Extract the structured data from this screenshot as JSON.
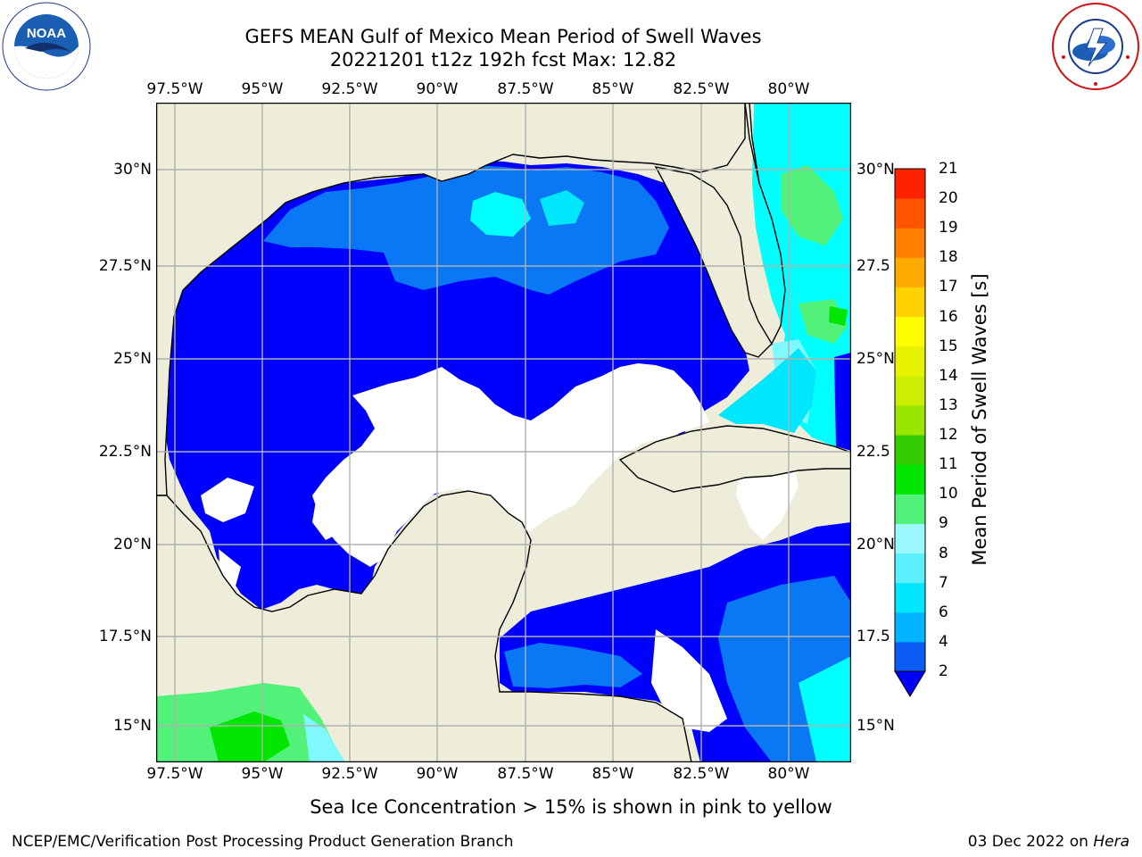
{
  "title": {
    "line1": "GEFS MEAN Gulf of Mexico Mean Period of Swell Waves",
    "line2": "20221201 t12z 192h fcst   Max: 12.82"
  },
  "axes": {
    "lon_ticks": [
      "97.5°W",
      "95°W",
      "92.5°W",
      "90°W",
      "87.5°W",
      "85°W",
      "82.5°W",
      "80°W"
    ],
    "lat_ticks_left": [
      "30°N",
      "27.5°N",
      "25°N",
      "22.5°N",
      "20°N",
      "17.5°N",
      "15°N"
    ],
    "lat_ticks_right": [
      "30°N",
      "27.5",
      "25°N",
      "22.5",
      "20°N",
      "17.5",
      "15°N"
    ]
  },
  "colorbar": {
    "title": "Mean Period of Swell Waves [s]",
    "levels": [
      "2",
      "4",
      "6",
      "7",
      "8",
      "9",
      "10",
      "11",
      "12",
      "13",
      "14",
      "15",
      "16",
      "17",
      "18",
      "19",
      "20",
      "21"
    ],
    "colors": [
      "#0a5cf5",
      "#00b4ff",
      "#00e6ff",
      "#5cf0ff",
      "#9cf8ff",
      "#52f27a",
      "#00e600",
      "#33cc00",
      "#99e600",
      "#ccee00",
      "#e6f200",
      "#ffff00",
      "#ffd200",
      "#ffaa00",
      "#ff8000",
      "#ff5500",
      "#ff2200",
      "#ff0000"
    ],
    "extend_color": "#0000ff"
  },
  "map_colors": {
    "land": "#eeedda",
    "ocean_low": "#0000ff",
    "ocean_mid": "#0a78f5",
    "cyan": "#00ffff",
    "light_cyan": "#7ff9ff",
    "green": "#52f27a",
    "bright_green": "#00e600",
    "yellow_green": "#99e600"
  },
  "footer": {
    "note": "Sea Ice Concentration > 15% is shown in pink to yellow",
    "credit": "NCEP/EMC/Verification Post Processing Product Generation Branch",
    "date": "03 Dec 2022 on",
    "machine": "Hera"
  },
  "logos": {
    "left": "NOAA",
    "left_ring": "NATIONAL OCEANIC AND ATMOSPHERIC ADMINISTRATION · U.S. DEPARTMENT OF COMMERCE",
    "right_ring": "NATIONAL WEATHER SERVICE"
  }
}
